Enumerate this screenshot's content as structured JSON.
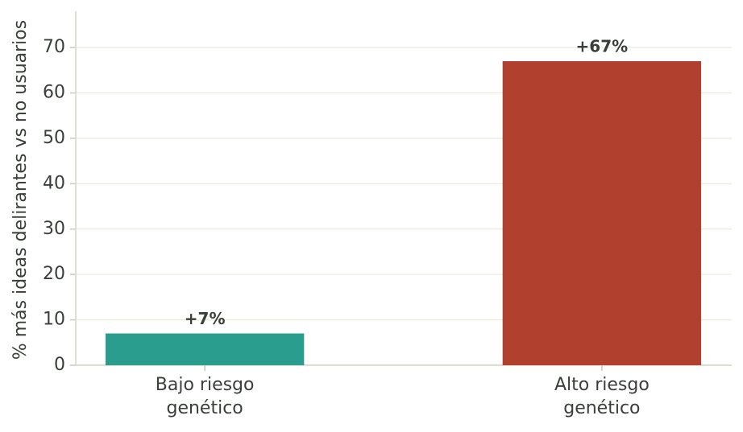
{
  "chart_data": {
    "type": "bar",
    "ylabel": "% más ideas delirantes vs no usuarios",
    "categories": [
      "Bajo riesgo\ngenético",
      "Alto riesgo\ngenético"
    ],
    "values": [
      7,
      67
    ],
    "value_labels": [
      "+7%",
      "+67%"
    ],
    "colors": [
      "#2a9d8f",
      "#b2402f"
    ],
    "ylim": [
      0,
      78
    ],
    "yticks": [
      0,
      10,
      20,
      30,
      40,
      50,
      60,
      70
    ],
    "grid": true
  }
}
